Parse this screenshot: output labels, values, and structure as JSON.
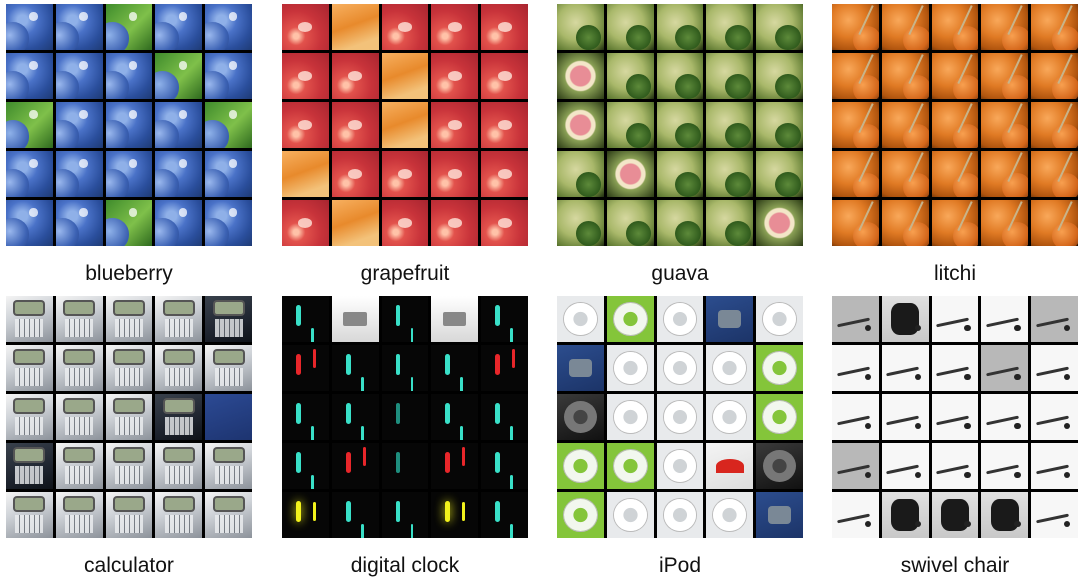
{
  "panels": [
    {
      "id": "blueberry",
      "label": "blueberry"
    },
    {
      "id": "grapefruit",
      "label": "grapefruit"
    },
    {
      "id": "guava",
      "label": "guava"
    },
    {
      "id": "litchi",
      "label": "litchi"
    },
    {
      "id": "calculator",
      "label": "calculator"
    },
    {
      "id": "digital-clock",
      "label": "digital clock"
    },
    {
      "id": "ipod",
      "label": "iPod"
    },
    {
      "id": "swivel-chair",
      "label": "swivel chair"
    }
  ],
  "grid": {
    "rows": 5,
    "cols": 5
  },
  "colors": {
    "background": "#ffffff",
    "grid_lines": "#000000",
    "caption_text": "#111111"
  }
}
